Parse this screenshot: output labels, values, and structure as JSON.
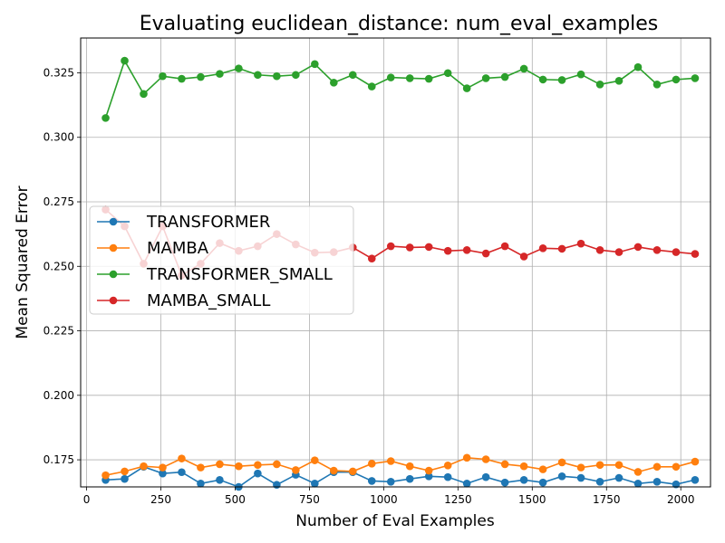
{
  "chart_data": {
    "type": "line",
    "title": "Evaluating euclidean_distance: num_eval_examples",
    "xlabel": "Number of Eval Examples",
    "ylabel": "Mean Squared Error",
    "xlim": [
      -20,
      2100
    ],
    "ylim": [
      0.1645,
      0.3385
    ],
    "xticks": [
      0,
      250,
      500,
      750,
      1000,
      1250,
      1500,
      1750,
      2000
    ],
    "yticks": [
      0.175,
      0.2,
      0.225,
      0.25,
      0.275,
      0.3,
      0.325
    ],
    "grid": true,
    "legend_position": "center-left",
    "x": [
      64,
      128,
      192,
      256,
      320,
      384,
      448,
      512,
      576,
      640,
      704,
      768,
      832,
      896,
      960,
      1024,
      1088,
      1152,
      1216,
      1280,
      1344,
      1408,
      1472,
      1536,
      1600,
      1664,
      1728,
      1792,
      1856,
      1920,
      1984,
      2048
    ],
    "series": [
      {
        "name": "TRANSFORMER",
        "color": "#1f77b4",
        "values": [
          0.1672,
          0.1676,
          0.1723,
          0.1697,
          0.1702,
          0.1658,
          0.1672,
          0.1645,
          0.1697,
          0.1653,
          0.1692,
          0.1658,
          0.1702,
          0.1702,
          0.1668,
          0.1665,
          0.1676,
          0.1686,
          0.1683,
          0.1658,
          0.1683,
          0.1662,
          0.1672,
          0.1662,
          0.1686,
          0.168,
          0.1665,
          0.168,
          0.1658,
          0.1665,
          0.1655,
          0.1672
        ]
      },
      {
        "name": "MAMBA",
        "color": "#ff7f0e",
        "values": [
          0.169,
          0.1705,
          0.1725,
          0.172,
          0.1755,
          0.172,
          0.1733,
          0.1725,
          0.173,
          0.1733,
          0.171,
          0.1748,
          0.1708,
          0.1705,
          0.1735,
          0.1745,
          0.1725,
          0.1708,
          0.1728,
          0.1758,
          0.1752,
          0.1733,
          0.1725,
          0.1713,
          0.174,
          0.172,
          0.173,
          0.173,
          0.1703,
          0.1723,
          0.1723,
          0.1743
        ]
      },
      {
        "name": "TRANSFORMER_SMALL",
        "color": "#2ca02c",
        "values": [
          0.3075,
          0.3297,
          0.3168,
          0.3237,
          0.3227,
          0.3234,
          0.3246,
          0.3267,
          0.3242,
          0.3237,
          0.3242,
          0.3284,
          0.3212,
          0.3242,
          0.3197,
          0.3232,
          0.3229,
          0.3227,
          0.3249,
          0.319,
          0.3229,
          0.3234,
          0.3266,
          0.3224,
          0.3222,
          0.3244,
          0.3205,
          0.3219,
          0.3272,
          0.3205,
          0.3224,
          0.3229
        ]
      },
      {
        "name": "MAMBA_SMALL",
        "color": "#d62728",
        "values": [
          0.272,
          0.2655,
          0.251,
          0.2655,
          0.2465,
          0.251,
          0.259,
          0.256,
          0.2578,
          0.2625,
          0.2585,
          0.2553,
          0.2555,
          0.2573,
          0.253,
          0.2578,
          0.2573,
          0.2575,
          0.256,
          0.2563,
          0.255,
          0.2578,
          0.2538,
          0.257,
          0.2568,
          0.2588,
          0.2563,
          0.2555,
          0.2575,
          0.2563,
          0.2555,
          0.2548
        ]
      }
    ]
  }
}
